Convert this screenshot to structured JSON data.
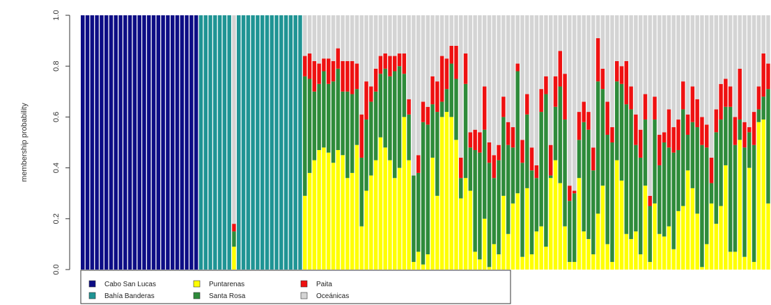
{
  "chart_data": {
    "type": "bar",
    "stacked": true,
    "ylabel": "membership probability",
    "ylim": [
      0,
      1
    ],
    "yticks": [
      "0.0",
      "0.2",
      "0.4",
      "0.6",
      "0.8",
      "1.0"
    ],
    "grid": false,
    "legend_position": "bottom-left",
    "series": [
      {
        "name": "Cabo San Lucas",
        "color": "#0d0d85"
      },
      {
        "name": "Bahía Banderas",
        "color": "#1f9494"
      },
      {
        "name": "Puntarenas",
        "color": "#ffff00"
      },
      {
        "name": "Santa Rosa",
        "color": "#2e8b3a"
      },
      {
        "name": "Paita",
        "color": "#ee1111"
      },
      {
        "name": "Oceánicas",
        "color": "#d4d4d4"
      }
    ],
    "bars": [
      [
        1,
        0,
        0,
        0,
        0,
        0
      ],
      [
        1,
        0,
        0,
        0,
        0,
        0
      ],
      [
        1,
        0,
        0,
        0,
        0,
        0
      ],
      [
        1,
        0,
        0,
        0,
        0,
        0
      ],
      [
        1,
        0,
        0,
        0,
        0,
        0
      ],
      [
        1,
        0,
        0,
        0,
        0,
        0
      ],
      [
        1,
        0,
        0,
        0,
        0,
        0
      ],
      [
        1,
        0,
        0,
        0,
        0,
        0
      ],
      [
        1,
        0,
        0,
        0,
        0,
        0
      ],
      [
        1,
        0,
        0,
        0,
        0,
        0
      ],
      [
        1,
        0,
        0,
        0,
        0,
        0
      ],
      [
        1,
        0,
        0,
        0,
        0,
        0
      ],
      [
        1,
        0,
        0,
        0,
        0,
        0
      ],
      [
        1,
        0,
        0,
        0,
        0,
        0
      ],
      [
        1,
        0,
        0,
        0,
        0,
        0
      ],
      [
        1,
        0,
        0,
        0,
        0,
        0
      ],
      [
        1,
        0,
        0,
        0,
        0,
        0
      ],
      [
        1,
        0,
        0,
        0,
        0,
        0
      ],
      [
        1,
        0,
        0,
        0,
        0,
        0
      ],
      [
        1,
        0,
        0,
        0,
        0,
        0
      ],
      [
        1,
        0,
        0,
        0,
        0,
        0
      ],
      [
        1,
        0,
        0,
        0,
        0,
        0
      ],
      [
        1,
        0,
        0,
        0,
        0,
        0
      ],
      [
        1,
        0,
        0,
        0,
        0,
        0
      ],
      [
        1,
        0,
        0,
        0,
        0,
        0
      ],
      [
        0,
        1,
        0,
        0,
        0,
        0
      ],
      [
        0,
        1,
        0,
        0,
        0,
        0
      ],
      [
        0,
        1,
        0,
        0,
        0,
        0
      ],
      [
        0,
        1,
        0,
        0,
        0,
        0
      ],
      [
        0,
        1,
        0,
        0,
        0,
        0
      ],
      [
        0,
        1,
        0,
        0,
        0,
        0
      ],
      [
        0,
        1,
        0,
        0,
        0,
        0
      ],
      [
        0,
        0,
        0.09,
        0.06,
        0.03,
        0.82
      ],
      [
        0,
        1,
        0,
        0,
        0,
        0
      ],
      [
        0,
        1,
        0,
        0,
        0,
        0
      ],
      [
        0,
        1,
        0,
        0,
        0,
        0
      ],
      [
        0,
        1,
        0,
        0,
        0,
        0
      ],
      [
        0,
        1,
        0,
        0,
        0,
        0
      ],
      [
        0,
        1,
        0,
        0,
        0,
        0
      ],
      [
        0,
        1,
        0,
        0,
        0,
        0
      ],
      [
        0,
        1,
        0,
        0,
        0,
        0
      ],
      [
        0,
        1,
        0,
        0,
        0,
        0
      ],
      [
        0,
        1,
        0,
        0,
        0,
        0
      ],
      [
        0,
        1,
        0,
        0,
        0,
        0
      ],
      [
        0,
        1,
        0,
        0,
        0,
        0
      ],
      [
        0,
        1,
        0,
        0,
        0,
        0
      ],
      [
        0,
        1,
        0,
        0,
        0,
        0
      ],
      [
        0,
        0,
        0.29,
        0.47,
        0.08,
        0.16
      ],
      [
        0,
        0,
        0.38,
        0.37,
        0.1,
        0.15
      ],
      [
        0,
        0,
        0.43,
        0.27,
        0.12,
        0.18
      ],
      [
        0,
        0,
        0.47,
        0.26,
        0.08,
        0.19
      ],
      [
        0,
        0,
        0.48,
        0.3,
        0.05,
        0.17
      ],
      [
        0,
        0,
        0.46,
        0.27,
        0.1,
        0.17
      ],
      [
        0,
        0,
        0.42,
        0.32,
        0.08,
        0.18
      ],
      [
        0,
        0,
        0.47,
        0.32,
        0.08,
        0.13
      ],
      [
        0,
        0,
        0.45,
        0.25,
        0.12,
        0.18
      ],
      [
        0,
        0,
        0.36,
        0.34,
        0.12,
        0.18
      ],
      [
        0,
        0,
        0.38,
        0.31,
        0.13,
        0.18
      ],
      [
        0,
        0,
        0.49,
        0.22,
        0.1,
        0.19
      ],
      [
        0,
        0,
        0.17,
        0.27,
        0.17,
        0.39
      ],
      [
        0,
        0,
        0.31,
        0.28,
        0.15,
        0.26
      ],
      [
        0,
        0,
        0.37,
        0.29,
        0.06,
        0.28
      ],
      [
        0,
        0,
        0.43,
        0.27,
        0.09,
        0.21
      ],
      [
        0,
        0,
        0.52,
        0.25,
        0.07,
        0.16
      ],
      [
        0,
        0,
        0.48,
        0.31,
        0.06,
        0.15
      ],
      [
        0,
        0,
        0.43,
        0.33,
        0.08,
        0.16
      ],
      [
        0,
        0,
        0.36,
        0.42,
        0.06,
        0.16
      ],
      [
        0,
        0,
        0.4,
        0.4,
        0.05,
        0.15
      ],
      [
        0,
        0,
        0.6,
        0.17,
        0.08,
        0.15
      ],
      [
        0,
        0,
        0.43,
        0.18,
        0.06,
        0.33
      ],
      [
        0,
        0,
        0.03,
        0.34,
        0.0,
        0.63
      ],
      [
        0,
        0,
        0.07,
        0.31,
        0.07,
        0.55
      ],
      [
        0,
        0,
        0.02,
        0.56,
        0.08,
        0.34
      ],
      [
        0,
        0,
        0.06,
        0.51,
        0.07,
        0.36
      ],
      [
        0,
        0,
        0.44,
        0.21,
        0.11,
        0.24
      ],
      [
        0,
        0,
        0.29,
        0.33,
        0.12,
        0.26
      ],
      [
        0,
        0,
        0.6,
        0.06,
        0.18,
        0.16
      ],
      [
        0,
        0,
        0.62,
        0.09,
        0.12,
        0.17
      ],
      [
        0,
        0,
        0.6,
        0.21,
        0.07,
        0.12
      ],
      [
        0,
        0,
        0.51,
        0.24,
        0.13,
        0.12
      ],
      [
        0,
        0,
        0.28,
        0.08,
        0.08,
        0.56
      ],
      [
        0,
        0,
        0.36,
        0.37,
        0.12,
        0.15
      ],
      [
        0,
        0,
        0.31,
        0.17,
        0.06,
        0.46
      ],
      [
        0,
        0,
        0.07,
        0.4,
        0.08,
        0.45
      ],
      [
        0,
        0,
        0.04,
        0.42,
        0.08,
        0.46
      ],
      [
        0,
        0,
        0.2,
        0.35,
        0.17,
        0.28
      ],
      [
        0,
        0,
        0.01,
        0.41,
        0.08,
        0.5
      ],
      [
        0,
        0,
        0.1,
        0.26,
        0.09,
        0.55
      ],
      [
        0,
        0,
        0.06,
        0.37,
        0.06,
        0.51
      ],
      [
        0,
        0,
        0.29,
        0.31,
        0.08,
        0.32
      ],
      [
        0,
        0,
        0.14,
        0.35,
        0.09,
        0.42
      ],
      [
        0,
        0,
        0.26,
        0.22,
        0.08,
        0.44
      ],
      [
        0,
        0,
        0.3,
        0.48,
        0.03,
        0.19
      ],
      [
        0,
        0,
        0.05,
        0.37,
        0.09,
        0.49
      ],
      [
        0,
        0,
        0.32,
        0.29,
        0.08,
        0.31
      ],
      [
        0,
        0,
        0.06,
        0.33,
        0.09,
        0.52
      ],
      [
        0,
        0,
        0.15,
        0.21,
        0.05,
        0.59
      ],
      [
        0,
        0,
        0.17,
        0.45,
        0.09,
        0.29
      ],
      [
        0,
        0,
        0.09,
        0.6,
        0.07,
        0.24
      ],
      [
        0,
        0,
        0.36,
        0.01,
        0.12,
        0.51
      ],
      [
        0,
        0,
        0.43,
        0.21,
        0.12,
        0.24
      ],
      [
        0,
        0,
        0.34,
        0.38,
        0.14,
        0.14
      ],
      [
        0,
        0,
        0.17,
        0.42,
        0.18,
        0.23
      ],
      [
        0,
        0,
        0.03,
        0.24,
        0.06,
        0.67
      ],
      [
        0,
        0,
        0.03,
        0.27,
        0.01,
        0.69
      ],
      [
        0,
        0,
        0.36,
        0.15,
        0.11,
        0.38
      ],
      [
        0,
        0,
        0.15,
        0.43,
        0.08,
        0.34
      ],
      [
        0,
        0,
        0.12,
        0.43,
        0.07,
        0.38
      ],
      [
        0,
        0,
        0.06,
        0.33,
        0.09,
        0.52
      ],
      [
        0,
        0,
        0.22,
        0.52,
        0.17,
        0.09
      ],
      [
        0,
        0,
        0.33,
        0.38,
        0.08,
        0.21
      ],
      [
        0,
        0,
        0.1,
        0.43,
        0.13,
        0.34
      ],
      [
        0,
        0,
        0.03,
        0.47,
        0.06,
        0.44
      ],
      [
        0,
        0,
        0.43,
        0.31,
        0.08,
        0.18
      ],
      [
        0,
        0,
        0.35,
        0.38,
        0.07,
        0.2
      ],
      [
        0,
        0,
        0.14,
        0.51,
        0.17,
        0.18
      ],
      [
        0,
        0,
        0.12,
        0.51,
        0.09,
        0.28
      ],
      [
        0,
        0,
        0.15,
        0.34,
        0.12,
        0.39
      ],
      [
        0,
        0,
        0.06,
        0.38,
        0.11,
        0.45
      ],
      [
        0,
        0,
        0.33,
        0.26,
        0.1,
        0.31
      ],
      [
        0,
        0,
        0.03,
        0.22,
        0.04,
        0.71
      ],
      [
        0,
        0,
        0.26,
        0.33,
        0.09,
        0.32
      ],
      [
        0,
        0,
        0.14,
        0.27,
        0.12,
        0.47
      ],
      [
        0,
        0,
        0.13,
        0.37,
        0.04,
        0.46
      ],
      [
        0,
        0,
        0.17,
        0.31,
        0.15,
        0.37
      ],
      [
        0,
        0,
        0.08,
        0.38,
        0.1,
        0.44
      ],
      [
        0,
        0,
        0.23,
        0.24,
        0.12,
        0.41
      ],
      [
        0,
        0,
        0.25,
        0.38,
        0.11,
        0.26
      ],
      [
        0,
        0,
        0.39,
        0.14,
        0.08,
        0.39
      ],
      [
        0,
        0,
        0.32,
        0.26,
        0.14,
        0.28
      ],
      [
        0,
        0,
        0.22,
        0.34,
        0.11,
        0.33
      ],
      [
        0,
        0,
        0.01,
        0.48,
        0.11,
        0.4
      ],
      [
        0,
        0,
        0.1,
        0.38,
        0.09,
        0.43
      ],
      [
        0,
        0,
        0.26,
        0.08,
        0.1,
        0.56
      ],
      [
        0,
        0,
        0.18,
        0.36,
        0.09,
        0.37
      ],
      [
        0,
        0,
        0.25,
        0.34,
        0.14,
        0.27
      ],
      [
        0,
        0,
        0.41,
        0.23,
        0.11,
        0.25
      ],
      [
        0,
        0,
        0.07,
        0.57,
        0.08,
        0.28
      ],
      [
        0,
        0,
        0.07,
        0.42,
        0.11,
        0.4
      ],
      [
        0,
        0,
        0.51,
        0.08,
        0.2,
        0.21
      ],
      [
        0,
        0,
        0.05,
        0.43,
        0.1,
        0.42
      ],
      [
        0,
        0,
        0.4,
        0.14,
        0.02,
        0.44
      ],
      [
        0,
        0,
        0.03,
        0.46,
        0.13,
        0.38
      ],
      [
        0,
        0,
        0.58,
        0.05,
        0.09,
        0.28
      ],
      [
        0,
        0,
        0.59,
        0.09,
        0.17,
        0.15
      ],
      [
        0,
        0,
        0.26,
        0.45,
        0.1,
        0.19
      ]
    ]
  }
}
